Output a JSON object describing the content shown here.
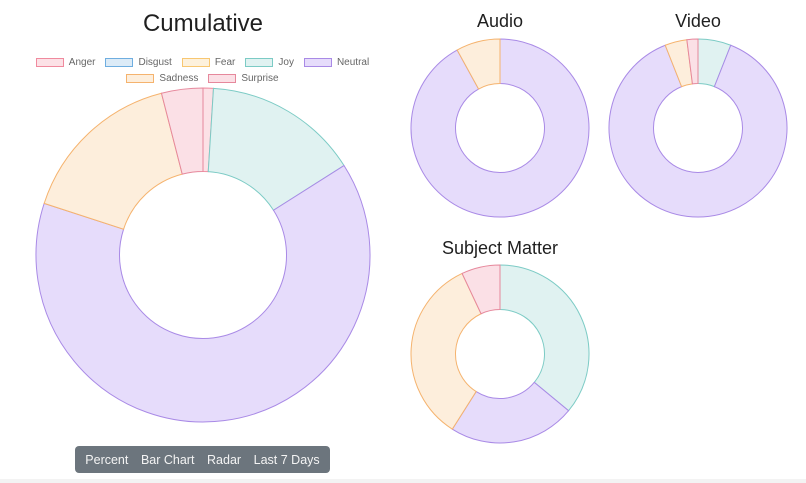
{
  "colors": {
    "Anger": {
      "fill": "#fce1e6",
      "stroke": "#f08a9e"
    },
    "Disgust": {
      "fill": "#dcebf7",
      "stroke": "#6faee0"
    },
    "Fear": {
      "fill": "#fdf1dc",
      "stroke": "#f8c771"
    },
    "Joy": {
      "fill": "#e0f2f1",
      "stroke": "#7ccbc5"
    },
    "Neutral": {
      "fill": "#e6dcfb",
      "stroke": "#a98ae6"
    },
    "Sadness": {
      "fill": "#fdeedc",
      "stroke": "#f5b36e"
    },
    "Surprise": {
      "fill": "#fbe0e6",
      "stroke": "#e6889c"
    }
  },
  "legend": {
    "rows": [
      [
        "Anger",
        "Disgust",
        "Fear",
        "Joy",
        "Neutral"
      ],
      [
        "Sadness",
        "Surprise"
      ]
    ]
  },
  "chart_data": [
    {
      "type": "pie",
      "title": "Cumulative",
      "cutout": 0.5,
      "categories": [
        "Anger",
        "Disgust",
        "Fear",
        "Joy",
        "Neutral",
        "Sadness",
        "Surprise"
      ],
      "values": [
        1,
        0,
        0,
        15,
        64,
        16,
        4
      ]
    },
    {
      "type": "pie",
      "title": "Audio",
      "cutout": 0.5,
      "categories": [
        "Anger",
        "Disgust",
        "Fear",
        "Joy",
        "Neutral",
        "Sadness",
        "Surprise"
      ],
      "values": [
        0,
        0,
        0,
        0,
        92,
        8,
        0
      ]
    },
    {
      "type": "pie",
      "title": "Video",
      "cutout": 0.5,
      "categories": [
        "Anger",
        "Disgust",
        "Fear",
        "Joy",
        "Neutral",
        "Sadness",
        "Surprise"
      ],
      "values": [
        0,
        0,
        0,
        6,
        88,
        4,
        2
      ]
    },
    {
      "type": "pie",
      "title": "Subject Matter",
      "cutout": 0.5,
      "categories": [
        "Anger",
        "Disgust",
        "Fear",
        "Joy",
        "Neutral",
        "Sadness",
        "Surprise"
      ],
      "values": [
        0,
        0,
        0,
        36,
        23,
        34,
        7
      ]
    }
  ],
  "toolbar": {
    "buttons": [
      "Percent",
      "Bar Chart",
      "Radar",
      "Last 7 Days"
    ]
  }
}
